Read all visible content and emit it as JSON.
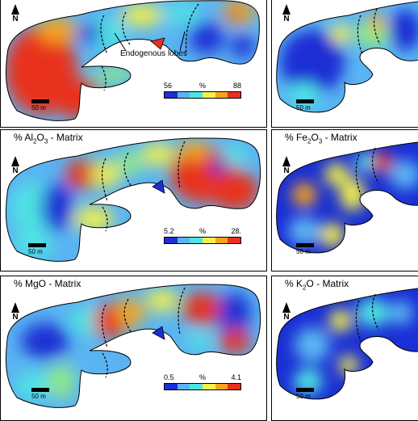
{
  "panels": [
    {
      "title": "",
      "legend_min": "56",
      "legend_unit": "%",
      "legend_max": "88",
      "annotation": "Endogenous lobes"
    },
    {
      "title": ""
    },
    {
      "title_prefix": "% Al",
      "title_sub": "2",
      "title_mid": "O",
      "title_sub2": "3",
      "title_suffix": " - Matrix",
      "legend_min": "5.2",
      "legend_unit": "%",
      "legend_max": "28."
    },
    {
      "title_prefix": "% Fe",
      "title_sub": "2",
      "title_mid": "O",
      "title_sub2": "3",
      "title_suffix": " - Matrix"
    },
    {
      "title": "% MgO - Matrix",
      "legend_min": "0.5",
      "legend_unit": "%",
      "legend_max": "4.1"
    },
    {
      "title_prefix": "% K",
      "title_sub": "2",
      "title_suffix": "O - Matrix"
    }
  ],
  "north_label": "N",
  "scale_label": "50 m",
  "colors": {
    "blue": "#1a2fd4",
    "lightblue": "#5ab4f2",
    "cyan": "#4fe3e3",
    "green": "#8ee88a",
    "yellow": "#f4f04a",
    "orange": "#f6a41e",
    "red": "#e8301e",
    "darkred": "#c81e14"
  },
  "legend_colors": [
    "#1a2fd4",
    "#5ab4f2",
    "#4fe3e3",
    "#f4f04a",
    "#f6a41e",
    "#e8301e"
  ]
}
